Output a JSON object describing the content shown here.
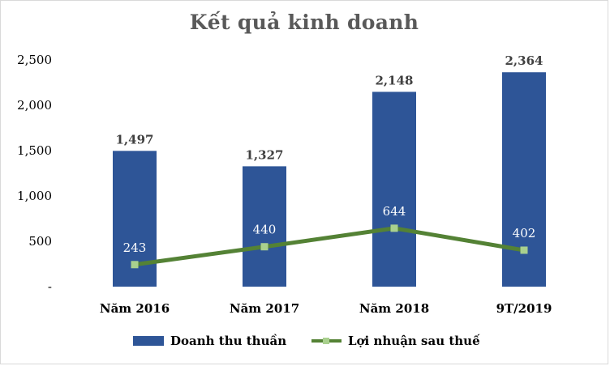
{
  "chart_data": {
    "type": "bar",
    "title": "Kết quả kinh doanh",
    "categories": [
      "Năm 2016",
      "Năm 2017",
      "Năm 2018",
      "9T/2019"
    ],
    "series": [
      {
        "name": "Doanh thu thuần",
        "kind": "bar",
        "values": [
          1497,
          1327,
          2148,
          2364
        ],
        "labels": [
          "1,497",
          "1,327",
          "2,148",
          "2,364"
        ],
        "color": "#2e5597"
      },
      {
        "name": "Lợi nhuận sau thuế",
        "kind": "line",
        "values": [
          243,
          440,
          644,
          402
        ],
        "labels": [
          "243",
          "440",
          "644",
          "402"
        ],
        "color": "#548235",
        "marker_color": "#a9d08e"
      }
    ],
    "yticks": [
      0,
      500,
      1000,
      1500,
      2000,
      2500
    ],
    "ytick_labels": [
      "-",
      "500",
      "1,000",
      "1,500",
      "2,000",
      "2,500"
    ],
    "ylim": [
      0,
      2500
    ],
    "grid": false,
    "legend_position": "bottom"
  }
}
